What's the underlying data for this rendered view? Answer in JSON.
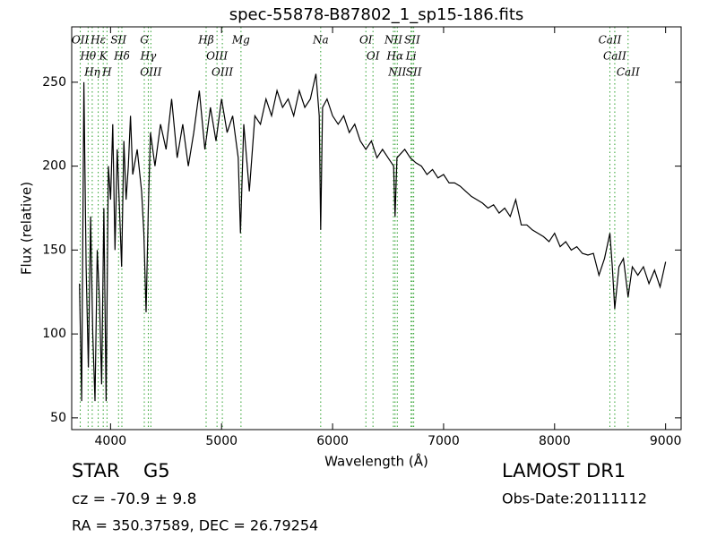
{
  "chart_data": {
    "type": "line",
    "title": "spec-55878-B87802_1_sp15-186.fits",
    "xlabel": "Wavelength (Å)",
    "ylabel": "Flux (relative)",
    "xlim": [
      3650,
      9140
    ],
    "ylim": [
      43,
      283
    ],
    "xticks": [
      4000,
      5000,
      6000,
      7000,
      8000,
      9000
    ],
    "yticks": [
      50,
      100,
      150,
      200,
      250
    ],
    "color": "#000000",
    "line_color": "#2ca02c",
    "x": [
      3720,
      3740,
      3760,
      3780,
      3800,
      3820,
      3840,
      3860,
      3880,
      3900,
      3920,
      3940,
      3960,
      3980,
      4000,
      4020,
      4040,
      4060,
      4080,
      4100,
      4120,
      4140,
      4160,
      4180,
      4200,
      4240,
      4280,
      4300,
      4320,
      4340,
      4360,
      4400,
      4450,
      4500,
      4550,
      4600,
      4650,
      4700,
      4750,
      4800,
      4850,
      4900,
      4950,
      5000,
      5050,
      5100,
      5150,
      5170,
      5200,
      5250,
      5300,
      5350,
      5400,
      5450,
      5500,
      5550,
      5600,
      5650,
      5700,
      5750,
      5800,
      5850,
      5880,
      5893,
      5910,
      5950,
      6000,
      6050,
      6100,
      6150,
      6200,
      6250,
      6300,
      6350,
      6400,
      6450,
      6500,
      6550,
      6563,
      6580,
      6650,
      6700,
      6750,
      6800,
      6850,
      6900,
      6950,
      7000,
      7050,
      7100,
      7150,
      7200,
      7250,
      7300,
      7350,
      7400,
      7450,
      7500,
      7550,
      7600,
      7650,
      7700,
      7750,
      7800,
      7850,
      7900,
      7950,
      8000,
      8050,
      8100,
      8150,
      8200,
      8250,
      8300,
      8350,
      8400,
      8450,
      8498,
      8520,
      8542,
      8580,
      8620,
      8662,
      8700,
      8750,
      8800,
      8850,
      8900,
      8950,
      9000
    ],
    "values": [
      130,
      60,
      250,
      140,
      80,
      170,
      100,
      60,
      150,
      120,
      70,
      175,
      60,
      200,
      180,
      225,
      150,
      210,
      175,
      140,
      215,
      180,
      200,
      230,
      195,
      210,
      185,
      160,
      113,
      175,
      220,
      200,
      225,
      210,
      240,
      205,
      225,
      200,
      220,
      245,
      210,
      235,
      215,
      240,
      220,
      230,
      205,
      160,
      225,
      185,
      230,
      225,
      240,
      230,
      245,
      235,
      240,
      230,
      245,
      235,
      240,
      255,
      230,
      162,
      235,
      240,
      230,
      225,
      230,
      220,
      225,
      215,
      210,
      215,
      205,
      210,
      205,
      200,
      170,
      205,
      210,
      205,
      202,
      200,
      195,
      198,
      193,
      195,
      190,
      190,
      188,
      185,
      182,
      180,
      178,
      175,
      177,
      172,
      175,
      170,
      180,
      165,
      165,
      162,
      160,
      158,
      155,
      160,
      152,
      155,
      150,
      152,
      148,
      147,
      148,
      135,
      145,
      160,
      140,
      115,
      140,
      145,
      122,
      140,
      135,
      140,
      130,
      138,
      128,
      143
    ],
    "lines": [
      {
        "label": "OII",
        "wavelength": 3727
      },
      {
        "label": "Hθ",
        "wavelength": 3798
      },
      {
        "label": "Hη",
        "wavelength": 3835
      },
      {
        "label": "Hε",
        "wavelength": 3889
      },
      {
        "label": "K",
        "wavelength": 3934
      },
      {
        "label": "H",
        "wavelength": 3968
      },
      {
        "label": "SII",
        "wavelength": 4072
      },
      {
        "label": "Hδ",
        "wavelength": 4102
      },
      {
        "label": "G",
        "wavelength": 4304
      },
      {
        "label": "Hγ",
        "wavelength": 4340
      },
      {
        "label": "OIII",
        "wavelength": 4363
      },
      {
        "label": "Hβ",
        "wavelength": 4861
      },
      {
        "label": "OIII",
        "wavelength": 4959
      },
      {
        "label": "OIII",
        "wavelength": 5007
      },
      {
        "label": "Mg",
        "wavelength": 5175
      },
      {
        "label": "Na",
        "wavelength": 5893
      },
      {
        "label": "OI",
        "wavelength": 6300
      },
      {
        "label": "OI",
        "wavelength": 6364
      },
      {
        "label": "NII",
        "wavelength": 6548
      },
      {
        "label": "Hα",
        "wavelength": 6563
      },
      {
        "label": "NII",
        "wavelength": 6583
      },
      {
        "label": "Li",
        "wavelength": 6707
      },
      {
        "label": "SII",
        "wavelength": 6717
      },
      {
        "label": "SII",
        "wavelength": 6731
      },
      {
        "label": "CaII",
        "wavelength": 8498
      },
      {
        "label": "CaII",
        "wavelength": 8542
      },
      {
        "label": "CaII",
        "wavelength": 8662
      }
    ]
  },
  "footer": {
    "object_class": "STAR",
    "subclass": "G5",
    "redshift": "cz = -70.9 ± 9.8",
    "survey": "LAMOST DR1",
    "obs_date": "Obs-Date:20111112",
    "coordinates": "RA = 350.37589, DEC = 26.79254"
  }
}
